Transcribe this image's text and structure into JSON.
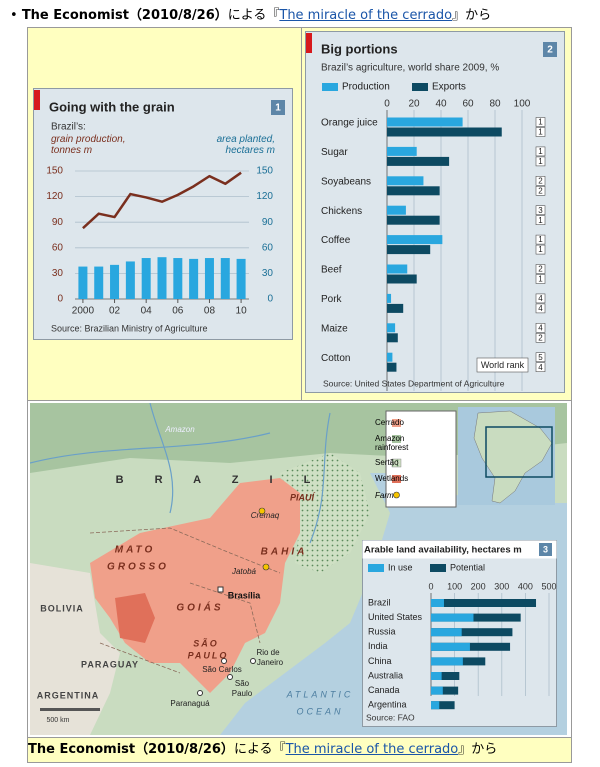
{
  "header": {
    "bold": "The Economist（2010/8/26）",
    "pre": "による『",
    "link": "The miracle of the cerrado",
    "post": "』から"
  },
  "chart_data": [
    {
      "type": "combo",
      "title": "Going with the grain",
      "number": 1,
      "subtitle": "Brazil’s:",
      "x": [
        2000,
        2001,
        2002,
        2003,
        2004,
        2005,
        2006,
        2007,
        2008,
        2009,
        2010
      ],
      "xlim": [
        1999.5,
        2010.5
      ],
      "xticks": [
        2000,
        {
          "value": 2002,
          "label": "02"
        },
        {
          "value": 2004,
          "label": "04"
        },
        {
          "value": 2006,
          "label": "06"
        },
        {
          "value": 2008,
          "label": "08"
        },
        {
          "value": 2010,
          "label": "10"
        }
      ],
      "ylim": [
        0,
        150
      ],
      "yticks": [
        0,
        30,
        60,
        90,
        120,
        150
      ],
      "y2lim": [
        0,
        150
      ],
      "y2ticks": [
        0,
        30,
        60,
        90,
        120,
        150
      ],
      "grid": true,
      "series": [
        {
          "name": "grain production, tonnes m",
          "type": "line",
          "color": "#7a2f1e",
          "values": [
            83,
            100,
            96,
            123,
            119,
            114,
            122,
            132,
            144,
            135,
            148
          ]
        },
        {
          "name": "area planted, hectares m",
          "type": "bar",
          "axis": "y2",
          "color": "#29a7df",
          "values": [
            38,
            38,
            40,
            44,
            48,
            49,
            48,
            47,
            48,
            48,
            47
          ]
        }
      ],
      "source": "Source: Brazilian Ministry of Agriculture"
    },
    {
      "type": "hbar",
      "layout": "grouped",
      "title": "Big portions",
      "number": 2,
      "subtitle": "Brazil’s agriculture, world share 2009, %",
      "categories": [
        "Orange juice",
        "Sugar",
        "Soyabeans",
        "Chickens",
        "Coffee",
        "Beef",
        "Pork",
        "Maize",
        "Cotton"
      ],
      "xlim": [
        0,
        100
      ],
      "xticks": [
        0,
        20,
        40,
        60,
        80,
        100
      ],
      "grid": true,
      "series": [
        {
          "name": "Production",
          "color": "#29a7df",
          "values": [
            56,
            22,
            27,
            14,
            41,
            15,
            3,
            6,
            4
          ]
        },
        {
          "name": "Exports",
          "color": "#0d4a62",
          "values": [
            85,
            46,
            39,
            39,
            32,
            22,
            12,
            8,
            7
          ]
        }
      ],
      "world_rank": {
        "label": "World rank",
        "production": [
          1,
          1,
          2,
          3,
          1,
          2,
          4,
          4,
          5
        ],
        "exports": [
          1,
          1,
          2,
          1,
          1,
          1,
          4,
          2,
          4
        ]
      },
      "source": "Source: United States Department of Agriculture"
    },
    {
      "type": "hbar",
      "layout": "overlaid",
      "title": "Arable land availability, hectares m",
      "number": 3,
      "categories": [
        "Brazil",
        "United States",
        "Russia",
        "India",
        "China",
        "Australia",
        "Canada",
        "Argentina"
      ],
      "xlim": [
        0,
        500
      ],
      "xticks": [
        0,
        100,
        200,
        300,
        400,
        500
      ],
      "grid": true,
      "series": [
        {
          "name": "Potential",
          "color": "#0d4a62",
          "values": [
            445,
            380,
            345,
            335,
            230,
            120,
            115,
            100
          ]
        },
        {
          "name": "In use",
          "color": "#29a7df",
          "values": [
            55,
            180,
            130,
            165,
            135,
            45,
            50,
            35
          ]
        }
      ],
      "source": "Source: FAO"
    }
  ],
  "map": {
    "labels": [
      "Amazon",
      "B R A Z I L",
      "PIAUÍ",
      "Cremaq",
      "MATO",
      "GROSSO",
      "BAHIA",
      "Jatobá",
      "Brasília",
      "GOIÁS",
      "BOLIVIA",
      "SÃO",
      "PAULO",
      "São Carlos",
      "Rio de",
      "Janeiro",
      "São",
      "Paulo",
      "Paranaguá",
      "PARAGUAY",
      "ARGENTINA",
      "ATLANTIC",
      "OCEAN",
      "500 km"
    ],
    "legend": [
      "Cerrado",
      "Amazon rainforest",
      "Sertão",
      "Wetlands",
      "Farm"
    ]
  },
  "caption": {
    "bold": "The Economist（2010/8/26）",
    "pre": "による『",
    "link": "The miracle of the cerrado",
    "post": "』から"
  }
}
